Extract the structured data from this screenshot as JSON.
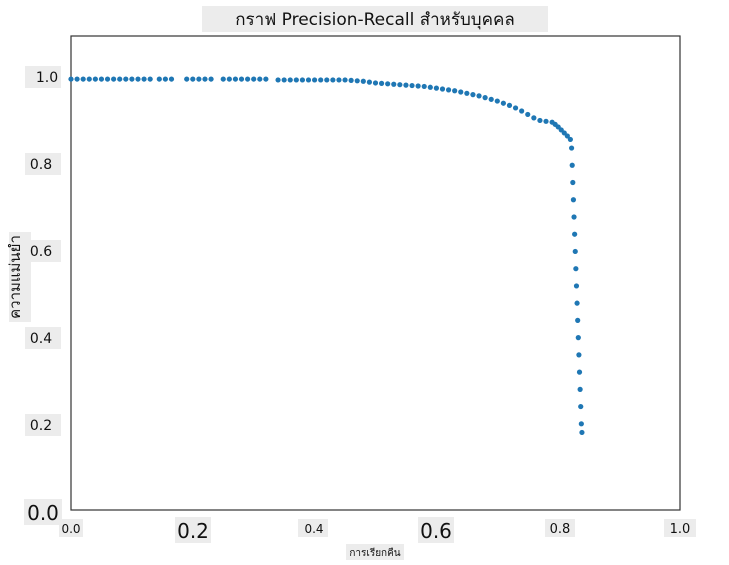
{
  "chart_data": {
    "type": "scatter",
    "title": "กราฟ Precision-Recall สำหรับบุคคล",
    "xlabel": "การเรียกคืน",
    "ylabel": "ความแม่นยำ",
    "xlim": [
      0.0,
      1.0
    ],
    "ylim": [
      0.0,
      1.1
    ],
    "x_ticks": [
      "0.0",
      "0.2",
      "0.4",
      "0.6",
      "0.8",
      "1.0"
    ],
    "y_ticks": [
      "0.0",
      "0.2",
      "0.4",
      "0.6",
      "0.8",
      "1.0"
    ],
    "grid": false,
    "color": "#1f77b4",
    "series": [
      {
        "points": [
          [
            0.0,
            1.0
          ],
          [
            0.01,
            1.0
          ],
          [
            0.02,
            1.0
          ],
          [
            0.03,
            1.0
          ],
          [
            0.04,
            1.0
          ],
          [
            0.05,
            1.0
          ],
          [
            0.06,
            1.0
          ],
          [
            0.07,
            1.0
          ],
          [
            0.08,
            1.0
          ],
          [
            0.09,
            1.0
          ],
          [
            0.1,
            1.0
          ],
          [
            0.11,
            1.0
          ],
          [
            0.12,
            1.0
          ],
          [
            0.13,
            1.0
          ],
          [
            0.145,
            1.0
          ],
          [
            0.155,
            1.0
          ],
          [
            0.165,
            1.0
          ],
          [
            0.19,
            1.0
          ],
          [
            0.2,
            1.0
          ],
          [
            0.21,
            1.0
          ],
          [
            0.22,
            1.0
          ],
          [
            0.23,
            1.0
          ],
          [
            0.25,
            1.0
          ],
          [
            0.26,
            1.0
          ],
          [
            0.27,
            1.0
          ],
          [
            0.28,
            1.0
          ],
          [
            0.29,
            1.0
          ],
          [
            0.3,
            1.0
          ],
          [
            0.31,
            1.0
          ],
          [
            0.32,
            1.0
          ],
          [
            0.34,
            0.998
          ],
          [
            0.35,
            0.998
          ],
          [
            0.36,
            0.998
          ],
          [
            0.37,
            0.998
          ],
          [
            0.38,
            0.998
          ],
          [
            0.39,
            0.998
          ],
          [
            0.4,
            0.998
          ],
          [
            0.41,
            0.998
          ],
          [
            0.42,
            0.998
          ],
          [
            0.43,
            0.998
          ],
          [
            0.44,
            0.998
          ],
          [
            0.45,
            0.998
          ],
          [
            0.46,
            0.997
          ],
          [
            0.47,
            0.996
          ],
          [
            0.48,
            0.995
          ],
          [
            0.49,
            0.993
          ],
          [
            0.5,
            0.991
          ],
          [
            0.51,
            0.99
          ],
          [
            0.52,
            0.989
          ],
          [
            0.53,
            0.988
          ],
          [
            0.54,
            0.987
          ],
          [
            0.55,
            0.986
          ],
          [
            0.56,
            0.985
          ],
          [
            0.57,
            0.984
          ],
          [
            0.58,
            0.983
          ],
          [
            0.59,
            0.981
          ],
          [
            0.6,
            0.979
          ],
          [
            0.61,
            0.977
          ],
          [
            0.62,
            0.975
          ],
          [
            0.63,
            0.973
          ],
          [
            0.64,
            0.97
          ],
          [
            0.65,
            0.967
          ],
          [
            0.66,
            0.964
          ],
          [
            0.67,
            0.961
          ],
          [
            0.68,
            0.957
          ],
          [
            0.69,
            0.953
          ],
          [
            0.7,
            0.949
          ],
          [
            0.71,
            0.944
          ],
          [
            0.72,
            0.939
          ],
          [
            0.73,
            0.933
          ],
          [
            0.74,
            0.926
          ],
          [
            0.75,
            0.918
          ],
          [
            0.76,
            0.91
          ],
          [
            0.77,
            0.904
          ],
          [
            0.78,
            0.902
          ],
          [
            0.79,
            0.9
          ],
          [
            0.795,
            0.895
          ],
          [
            0.8,
            0.889
          ],
          [
            0.805,
            0.882
          ],
          [
            0.81,
            0.875
          ],
          [
            0.815,
            0.868
          ],
          [
            0.82,
            0.86
          ],
          [
            0.822,
            0.84
          ],
          [
            0.823,
            0.8
          ],
          [
            0.824,
            0.76
          ],
          [
            0.825,
            0.72
          ],
          [
            0.826,
            0.68
          ],
          [
            0.827,
            0.64
          ],
          [
            0.828,
            0.6
          ],
          [
            0.829,
            0.56
          ],
          [
            0.83,
            0.52
          ],
          [
            0.831,
            0.48
          ],
          [
            0.832,
            0.44
          ],
          [
            0.833,
            0.4
          ],
          [
            0.834,
            0.36
          ],
          [
            0.835,
            0.32
          ],
          [
            0.836,
            0.28
          ],
          [
            0.837,
            0.24
          ],
          [
            0.838,
            0.2
          ],
          [
            0.839,
            0.18
          ]
        ]
      }
    ]
  }
}
